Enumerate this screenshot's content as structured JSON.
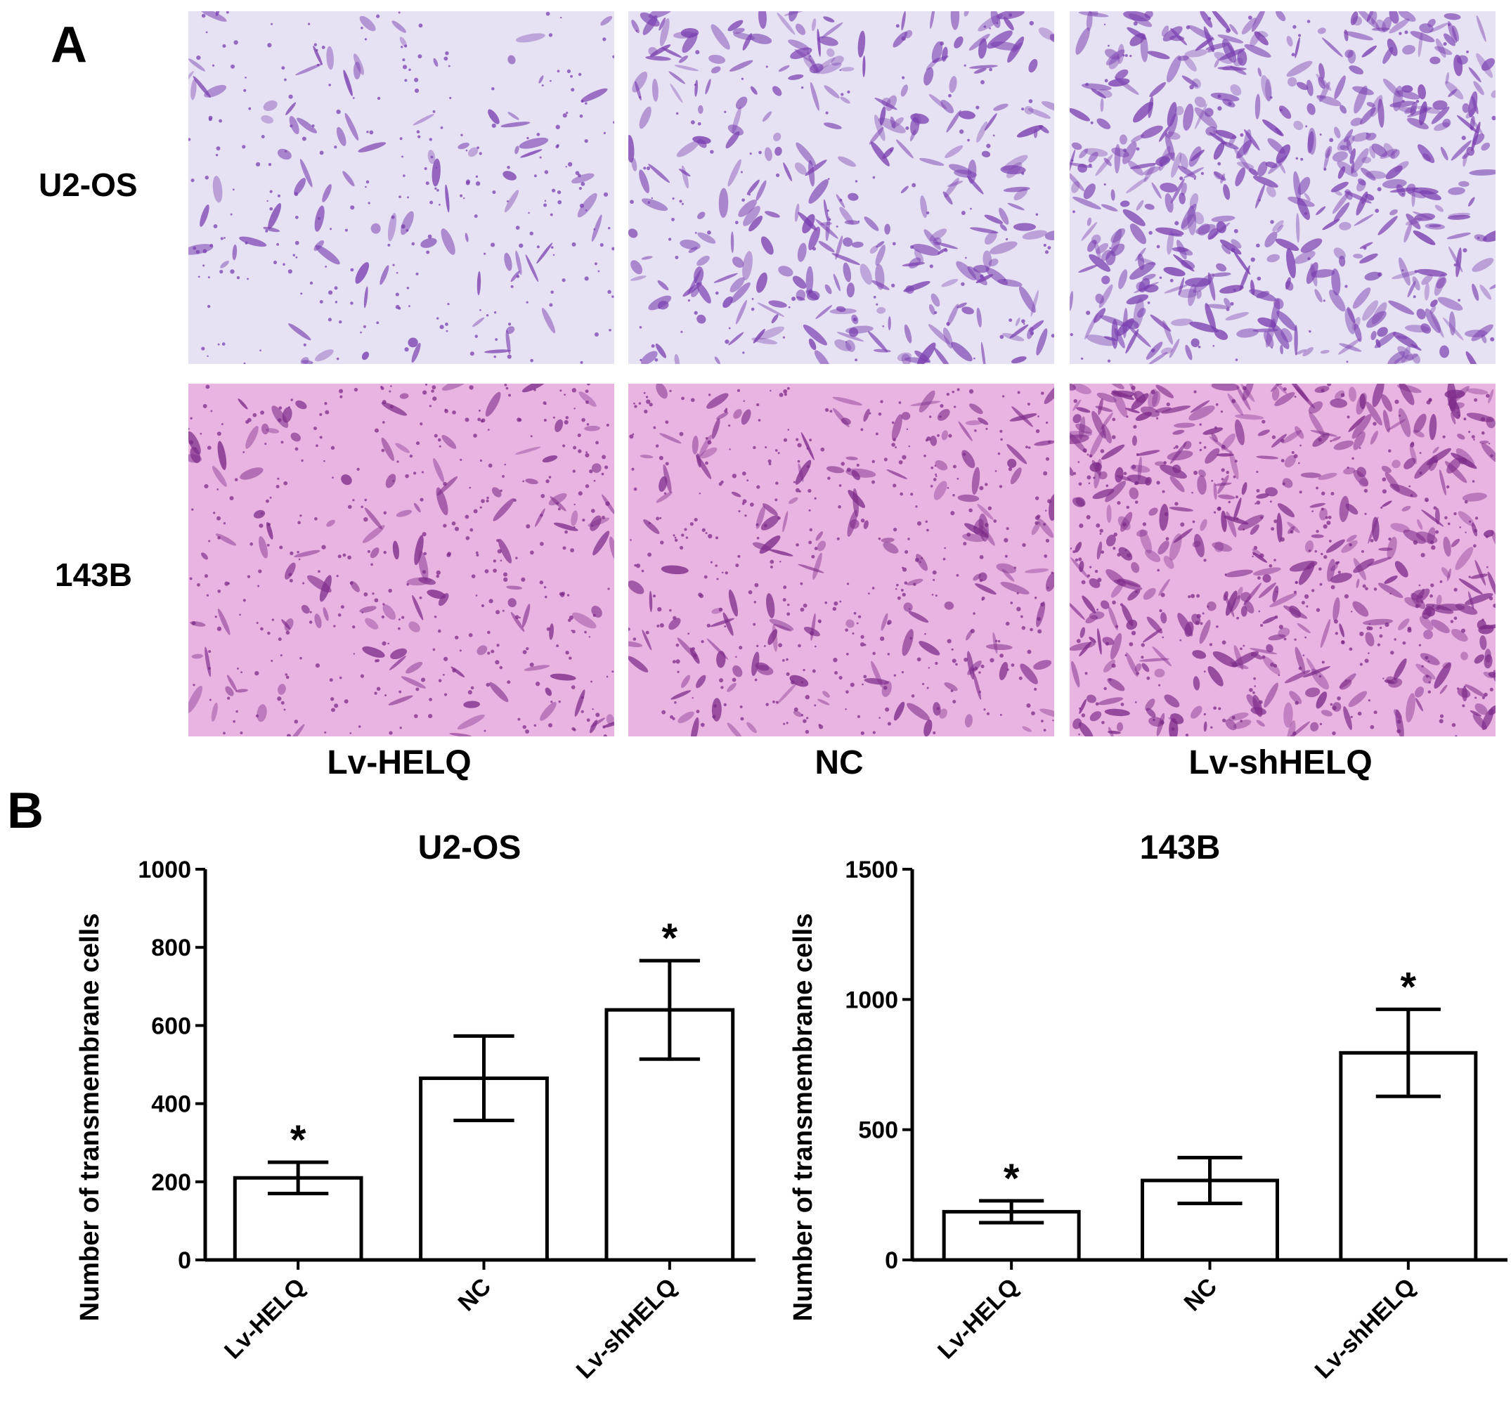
{
  "panels": {
    "a_letter": "A",
    "b_letter": "B"
  },
  "micrographs": {
    "rows": [
      "U2-OS",
      "143B"
    ],
    "columns": [
      "Lv-HELQ",
      "NC",
      "Lv-shHELQ"
    ],
    "colors": {
      "u2os_bg": "#e7e2f3",
      "u2os_cell": "#7a3fb0",
      "b143_bg": "#e9b3e2",
      "b143_cell": "#7e2c8a"
    }
  },
  "chart_data": [
    {
      "type": "bar",
      "title": "U2-OS",
      "ylabel": "Number of transmembrane cells",
      "categories": [
        "Lv-HELQ",
        "NC",
        "Lv-shHELQ"
      ],
      "values": [
        210,
        465,
        640
      ],
      "errors": [
        40,
        108,
        126
      ],
      "significance": [
        "*",
        "",
        "*"
      ],
      "ylim": [
        0,
        1000
      ],
      "yticks": [
        0,
        200,
        400,
        600,
        800,
        1000
      ],
      "grid": false
    },
    {
      "type": "bar",
      "title": "143B",
      "ylabel": "Number of transmembrane cells",
      "categories": [
        "Lv-HELQ",
        "NC",
        "Lv-shHELQ"
      ],
      "values": [
        185,
        305,
        795
      ],
      "errors": [
        42,
        88,
        167
      ],
      "significance": [
        "*",
        "",
        "*"
      ],
      "ylim": [
        0,
        1500
      ],
      "yticks": [
        0,
        500,
        1000,
        1500
      ],
      "grid": false
    }
  ]
}
